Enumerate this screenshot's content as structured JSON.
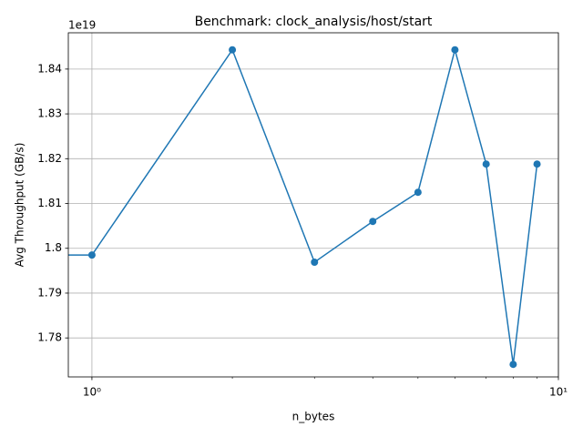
{
  "chart_data": {
    "type": "line",
    "title": "Benchmark: clock_analysis/host/start",
    "xlabel": "n_bytes",
    "ylabel": "Avg Throughput (GB/s)",
    "y_offset_label": "1e19",
    "x": [
      0,
      1,
      2,
      3,
      4,
      5,
      6,
      7,
      8,
      9
    ],
    "series": [
      {
        "color": "#1f77b4",
        "values": [
          1.7985,
          1.7985,
          1.8443,
          1.7969,
          1.806,
          1.8125,
          1.8443,
          1.8188,
          1.7741,
          1.8188
        ]
      }
    ],
    "xscale": "log",
    "xlim": [
      0.89,
      10
    ],
    "xticks": [
      {
        "value": 1,
        "label": "10⁰"
      },
      {
        "value": 10,
        "label": "10¹"
      }
    ],
    "xminorticks": [
      2,
      3,
      4,
      5,
      6,
      7,
      8,
      9
    ],
    "ylim": [
      1.7713,
      1.8481
    ],
    "yticks": [
      1.78,
      1.79,
      1.8,
      1.81,
      1.82,
      1.83,
      1.84
    ],
    "grid": true
  }
}
